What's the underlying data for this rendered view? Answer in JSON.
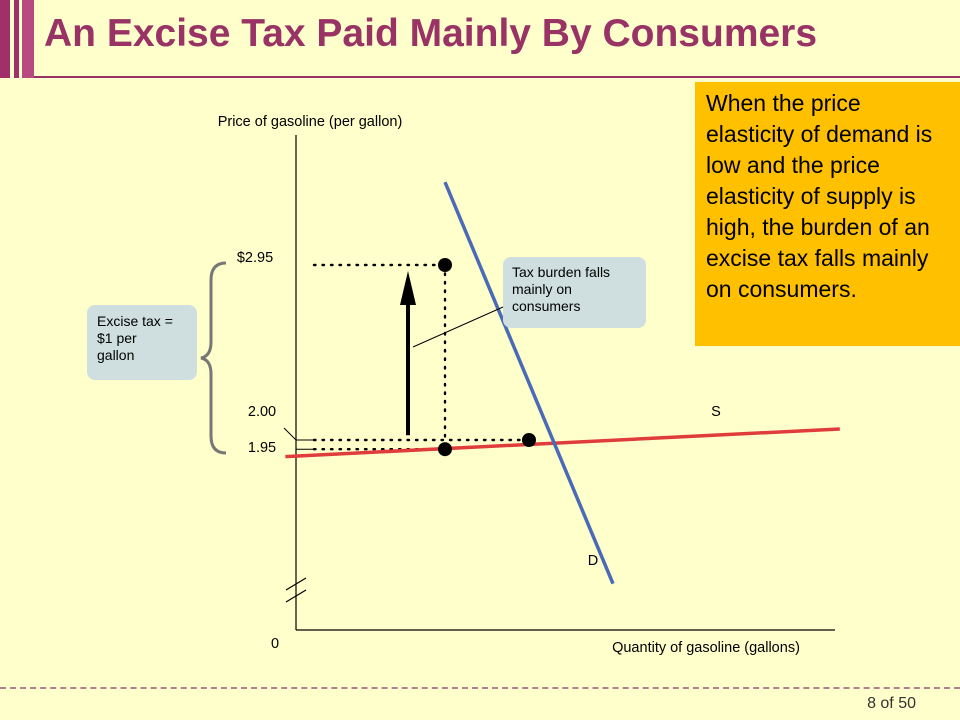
{
  "slide": {
    "title": "An Excise Tax Paid Mainly By Consumers",
    "callout_text": "When the price elasticity of demand is low and the price elasticity of supply is high, the burden of an excise tax falls mainly on consumers.",
    "page": "8 of 50"
  },
  "chart_data": {
    "type": "line",
    "title": "",
    "ylabel": "Price of gasoline (per gallon)",
    "xlabel": "Quantity of gasoline (gallons)",
    "origin_label": "0",
    "y_ticks": [
      {
        "value": 2.95,
        "label": "$2.95"
      },
      {
        "value": 2.0,
        "label": "2.00"
      },
      {
        "value": 1.95,
        "label": "1.95"
      }
    ],
    "series": [
      {
        "name": "S",
        "color": "#e03c3c",
        "slope": "elastic",
        "points": [
          [
            -2.9,
            1.91
          ],
          [
            3.7,
            2.06
          ]
        ]
      },
      {
        "name": "D",
        "color": "#4a6ab8",
        "slope": "inelastic",
        "points": [
          [
            -1.0,
            3.4
          ],
          [
            1.0,
            1.22
          ]
        ]
      }
    ],
    "equilibrium": {
      "quantity": 0,
      "price": 2.0
    },
    "tax": {
      "quantity": -1,
      "consumer_price": 2.95,
      "producer_price": 1.95,
      "label": "Excise tax = $1 per gallon"
    },
    "annotations": [
      {
        "text": "Tax burden falls mainly on consumers"
      }
    ],
    "grid": false
  }
}
